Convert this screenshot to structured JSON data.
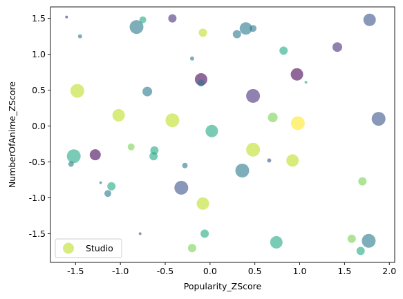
{
  "chart_data": {
    "type": "scatter",
    "title": "",
    "xlabel": "Popularity_ZScore",
    "ylabel": "NumberOfAnime_ZScore",
    "xlim": [
      -1.78,
      2.06
    ],
    "ylim": [
      -1.9,
      1.66
    ],
    "xticks": [
      "-1.5",
      "-1.0",
      "-0.5",
      "0.0",
      "0.5",
      "1.0",
      "1.5",
      "2.0"
    ],
    "yticks": [
      "-1.5",
      "-1.0",
      "-0.5",
      "0.0",
      "0.5",
      "1.0",
      "1.5"
    ],
    "xtick_values": [
      -1.5,
      -1.0,
      -0.5,
      0.0,
      0.5,
      1.0,
      1.5,
      2.0
    ],
    "ytick_values": [
      -1.5,
      -1.0,
      -0.5,
      0.0,
      0.5,
      1.0,
      1.5
    ],
    "grid": false,
    "legend": {
      "entries": [
        "Studio"
      ],
      "placement": "lower-left",
      "color": "#bddf26"
    },
    "alpha": 0.6,
    "points": [
      {
        "x": -1.6,
        "y": 1.52,
        "s": 2,
        "c": "#472d7b"
      },
      {
        "x": -1.45,
        "y": 1.25,
        "s": 3,
        "c": "#2a788e"
      },
      {
        "x": -0.82,
        "y": 1.38,
        "s": 10,
        "c": "#2a788e"
      },
      {
        "x": -0.75,
        "y": 1.48,
        "s": 5,
        "c": "#22a884"
      },
      {
        "x": -0.42,
        "y": 1.5,
        "s": 6,
        "c": "#472d7b"
      },
      {
        "x": -0.08,
        "y": 1.3,
        "s": 6,
        "c": "#bddf26"
      },
      {
        "x": 0.3,
        "y": 1.28,
        "s": 6,
        "c": "#2a788e"
      },
      {
        "x": 0.4,
        "y": 1.36,
        "s": 9,
        "c": "#2a788e"
      },
      {
        "x": 0.48,
        "y": 1.36,
        "s": 5,
        "c": "#2a788e"
      },
      {
        "x": 1.78,
        "y": 1.48,
        "s": 9,
        "c": "#3b528b"
      },
      {
        "x": 1.42,
        "y": 1.1,
        "s": 7,
        "c": "#472d7b"
      },
      {
        "x": 0.82,
        "y": 1.05,
        "s": 6,
        "c": "#22a884"
      },
      {
        "x": -0.2,
        "y": 0.94,
        "s": 3,
        "c": "#2a788e"
      },
      {
        "x": -0.1,
        "y": 0.65,
        "s": 9,
        "c": "#440154"
      },
      {
        "x": -0.1,
        "y": 0.6,
        "s": 5,
        "c": "#2a788e"
      },
      {
        "x": 1.07,
        "y": 0.61,
        "s": 2,
        "c": "#22a884"
      },
      {
        "x": 0.97,
        "y": 0.72,
        "s": 9,
        "c": "#440154"
      },
      {
        "x": 0.48,
        "y": 0.42,
        "s": 10,
        "c": "#472d7b"
      },
      {
        "x": -1.48,
        "y": 0.49,
        "s": 10,
        "c": "#bddf26"
      },
      {
        "x": -0.7,
        "y": 0.48,
        "s": 7,
        "c": "#2a788e"
      },
      {
        "x": -1.02,
        "y": 0.15,
        "s": 9,
        "c": "#bddf26"
      },
      {
        "x": -0.42,
        "y": 0.08,
        "s": 10,
        "c": "#bddf26"
      },
      {
        "x": 0.02,
        "y": -0.07,
        "s": 9,
        "c": "#22a884"
      },
      {
        "x": 0.7,
        "y": 0.12,
        "s": 7,
        "c": "#7ad151"
      },
      {
        "x": 0.98,
        "y": 0.04,
        "s": 10,
        "c": "#fde725"
      },
      {
        "x": 1.88,
        "y": 0.1,
        "s": 10,
        "c": "#3b528b"
      },
      {
        "x": -1.52,
        "y": -0.42,
        "s": 10,
        "c": "#22a884"
      },
      {
        "x": -1.55,
        "y": -0.53,
        "s": 4,
        "c": "#2a788e"
      },
      {
        "x": -1.28,
        "y": -0.4,
        "s": 8,
        "c": "#440154"
      },
      {
        "x": -0.88,
        "y": -0.29,
        "s": 5,
        "c": "#7ad151"
      },
      {
        "x": -0.62,
        "y": -0.34,
        "s": 6,
        "c": "#22a884"
      },
      {
        "x": -0.63,
        "y": -0.42,
        "s": 6,
        "c": "#22a884"
      },
      {
        "x": -0.28,
        "y": -0.55,
        "s": 4,
        "c": "#2a788e"
      },
      {
        "x": 0.36,
        "y": -0.62,
        "s": 10,
        "c": "#2a788e"
      },
      {
        "x": 0.48,
        "y": -0.33,
        "s": 10,
        "c": "#bddf26"
      },
      {
        "x": 0.66,
        "y": -0.48,
        "s": 3,
        "c": "#3b528b"
      },
      {
        "x": 0.92,
        "y": -0.48,
        "s": 9,
        "c": "#bddf26"
      },
      {
        "x": -1.22,
        "y": -0.79,
        "s": 2,
        "c": "#2a788e"
      },
      {
        "x": -1.1,
        "y": -0.84,
        "s": 6,
        "c": "#22a884"
      },
      {
        "x": -1.14,
        "y": -0.94,
        "s": 5,
        "c": "#2a788e"
      },
      {
        "x": -0.32,
        "y": -0.86,
        "s": 10,
        "c": "#3b528b"
      },
      {
        "x": -0.08,
        "y": -1.08,
        "s": 9,
        "c": "#bddf26"
      },
      {
        "x": 1.7,
        "y": -0.77,
        "s": 6,
        "c": "#7ad151"
      },
      {
        "x": -0.78,
        "y": -1.5,
        "s": 2,
        "c": "#3b528b"
      },
      {
        "x": -0.06,
        "y": -1.5,
        "s": 6,
        "c": "#22a884"
      },
      {
        "x": -0.2,
        "y": -1.7,
        "s": 6,
        "c": "#7ad151"
      },
      {
        "x": 0.74,
        "y": -1.62,
        "s": 9,
        "c": "#22a884"
      },
      {
        "x": 1.58,
        "y": -1.57,
        "s": 6,
        "c": "#7ad151"
      },
      {
        "x": 1.68,
        "y": -1.74,
        "s": 6,
        "c": "#22a884"
      },
      {
        "x": 1.77,
        "y": -1.6,
        "s": 10,
        "c": "#2a788e"
      }
    ]
  }
}
